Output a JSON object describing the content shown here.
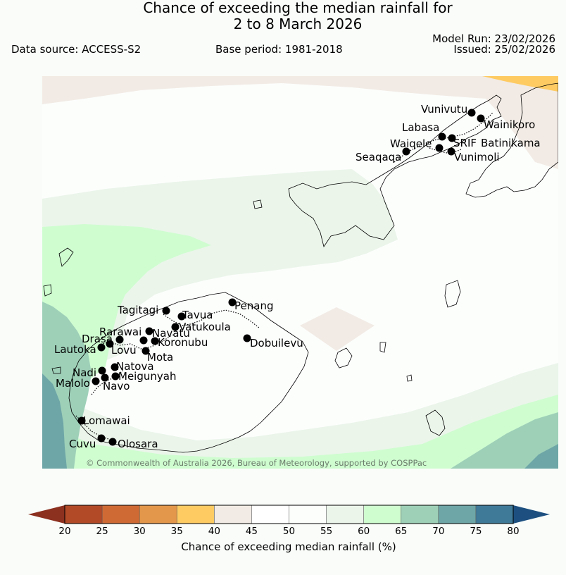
{
  "header": {
    "title_line1": "Chance of exceeding the median rainfall for",
    "title_line2": "2 to 8 March 2026",
    "data_source": "Data source: ACCESS-S2",
    "base_period": "Base period: 1981-2018",
    "model_run": "Model Run: 23/02/2026",
    "issued": "Issued: 25/02/2026"
  },
  "map": {
    "copyright": "© Commonwealth of Australia 2026, Bureau of Meteorology, supported by COSPPac",
    "places": [
      {
        "name": "Vunivutu"
      },
      {
        "name": "Wainikoro"
      },
      {
        "name": "Labasa"
      },
      {
        "name": "Waiqele"
      },
      {
        "name": "SRIF"
      },
      {
        "name": "Batinikama"
      },
      {
        "name": "Seaqaqa"
      },
      {
        "name": "Vunimoli"
      },
      {
        "name": "Tagitagi"
      },
      {
        "name": "Tavua"
      },
      {
        "name": "Penang"
      },
      {
        "name": "Vatukoula"
      },
      {
        "name": "Rarawai"
      },
      {
        "name": "Navatu"
      },
      {
        "name": "Drasa"
      },
      {
        "name": "Koronubu"
      },
      {
        "name": "Lautoka"
      },
      {
        "name": "Lovu"
      },
      {
        "name": "Dobuilevu"
      },
      {
        "name": "Mota"
      },
      {
        "name": "Natova"
      },
      {
        "name": "Nadi"
      },
      {
        "name": "Meigunyah"
      },
      {
        "name": "Malolo"
      },
      {
        "name": "Navo"
      },
      {
        "name": "Lomawai"
      },
      {
        "name": "Cuvu"
      },
      {
        "name": "Olosara"
      }
    ]
  },
  "colorbar": {
    "title": "Chance of exceeding median rainfall (%)",
    "ticks": [
      "20",
      "25",
      "30",
      "35",
      "40",
      "45",
      "50",
      "55",
      "60",
      "65",
      "70",
      "75",
      "80"
    ],
    "colors": [
      "#8c3020",
      "#b24a28",
      "#d06a35",
      "#e3974a",
      "#fecb63",
      "#f2ebe5",
      "#ffffff",
      "#fcfefc",
      "#ebf5ea",
      "#cffdd0",
      "#9ed0b8",
      "#6ea6a7",
      "#3f7a99",
      "#1d5080"
    ]
  }
}
